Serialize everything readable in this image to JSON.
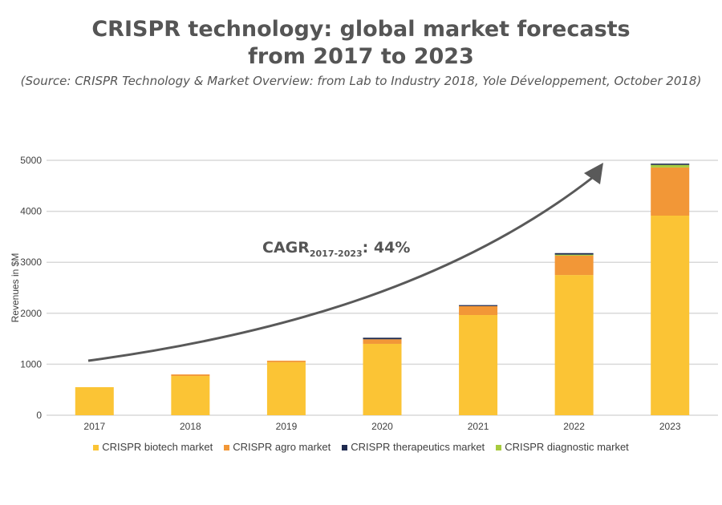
{
  "title_line1": "CRISPR technology: global market forecasts",
  "title_line2": "from 2017 to 2023",
  "source": "(Source: CRISPR Technology & Market Overview: from Lab to Industry 2018, Yole Développement, October 2018)",
  "annotation": {
    "prefix": "CAGR",
    "sub": "2017-2023",
    "suffix": ": 44%"
  },
  "chart_data": {
    "type": "bar",
    "stacked": true,
    "categories": [
      "2017",
      "2018",
      "2019",
      "2020",
      "2021",
      "2022",
      "2023"
    ],
    "ylabel": "Revenues in $M",
    "ylim": [
      0,
      5000
    ],
    "yticks": [
      0,
      1000,
      2000,
      3000,
      4000,
      5000
    ],
    "ytick_labels": [
      "0",
      "1000",
      "2000",
      "3000",
      "4000",
      "5000"
    ],
    "grid": true,
    "legend_position": "bottom",
    "series": [
      {
        "name": "CRISPR biotech market",
        "color": "#FBC435",
        "values": [
          550,
          770,
          1040,
          1400,
          1965,
          2750,
          3915
        ]
      },
      {
        "name": "CRISPR agro market",
        "color": "#F29737",
        "values": [
          0,
          30,
          30,
          90,
          175,
          380,
          945
        ]
      },
      {
        "name": "CRISPR therapeutics market",
        "color": "#1F2A4F",
        "values": [
          0,
          0,
          0,
          30,
          20,
          30,
          25
        ]
      },
      {
        "name": "CRISPR diagnostic market",
        "color": "#A7CB3E",
        "values": [
          0,
          0,
          0,
          0,
          0,
          20,
          50
        ]
      }
    ]
  }
}
